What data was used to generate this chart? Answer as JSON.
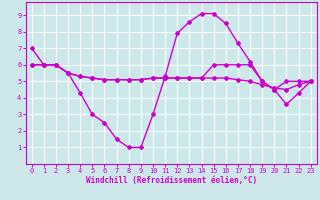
{
  "bg_color": "#cce8ea",
  "grid_color": "#ffffff",
  "line_color": "#cc00cc",
  "marker": "D",
  "marker_size": 2.0,
  "line_width": 1.0,
  "series1_x": [
    0,
    1,
    2,
    3,
    4,
    5,
    6,
    7,
    8,
    9,
    10,
    11,
    12,
    13,
    14,
    15,
    16,
    17,
    18,
    19,
    20,
    21,
    22,
    23
  ],
  "series1_y": [
    7.0,
    6.0,
    6.0,
    5.5,
    4.3,
    3.0,
    2.5,
    1.5,
    1.0,
    1.0,
    3.0,
    5.3,
    7.9,
    8.6,
    9.1,
    9.1,
    8.5,
    7.3,
    6.2,
    5.0,
    4.5,
    3.6,
    4.3,
    5.0
  ],
  "series2_x": [
    0,
    1,
    2,
    3,
    4,
    5,
    6,
    7,
    8,
    9,
    10,
    11,
    12,
    13,
    14,
    15,
    16,
    17,
    18,
    19,
    20,
    21,
    22,
    23
  ],
  "series2_y": [
    6.0,
    6.0,
    6.0,
    5.5,
    5.3,
    5.2,
    5.1,
    5.1,
    5.1,
    5.1,
    5.2,
    5.2,
    5.2,
    5.2,
    5.2,
    5.2,
    5.2,
    5.1,
    5.0,
    4.8,
    4.6,
    4.5,
    4.8,
    5.0
  ],
  "series3_x": [
    0,
    1,
    2,
    3,
    4,
    5,
    6,
    7,
    8,
    9,
    10,
    11,
    12,
    13,
    14,
    15,
    16,
    17,
    18,
    19,
    20,
    21,
    22,
    23
  ],
  "series3_y": [
    6.0,
    6.0,
    6.0,
    5.5,
    5.3,
    5.2,
    5.1,
    5.1,
    5.1,
    5.1,
    5.2,
    5.2,
    5.2,
    5.2,
    5.2,
    6.0,
    6.0,
    6.0,
    6.0,
    5.0,
    4.5,
    5.0,
    5.0,
    5.0
  ],
  "xlabel": "Windchill (Refroidissement éolien,°C)",
  "xlim": [
    -0.5,
    23.5
  ],
  "ylim": [
    0,
    9.8
  ],
  "xticks": [
    0,
    1,
    2,
    3,
    4,
    5,
    6,
    7,
    8,
    9,
    10,
    11,
    12,
    13,
    14,
    15,
    16,
    17,
    18,
    19,
    20,
    21,
    22,
    23
  ],
  "yticks": [
    1,
    2,
    3,
    4,
    5,
    6,
    7,
    8,
    9
  ],
  "tick_fontsize": 5.0,
  "xlabel_fontsize": 5.5
}
